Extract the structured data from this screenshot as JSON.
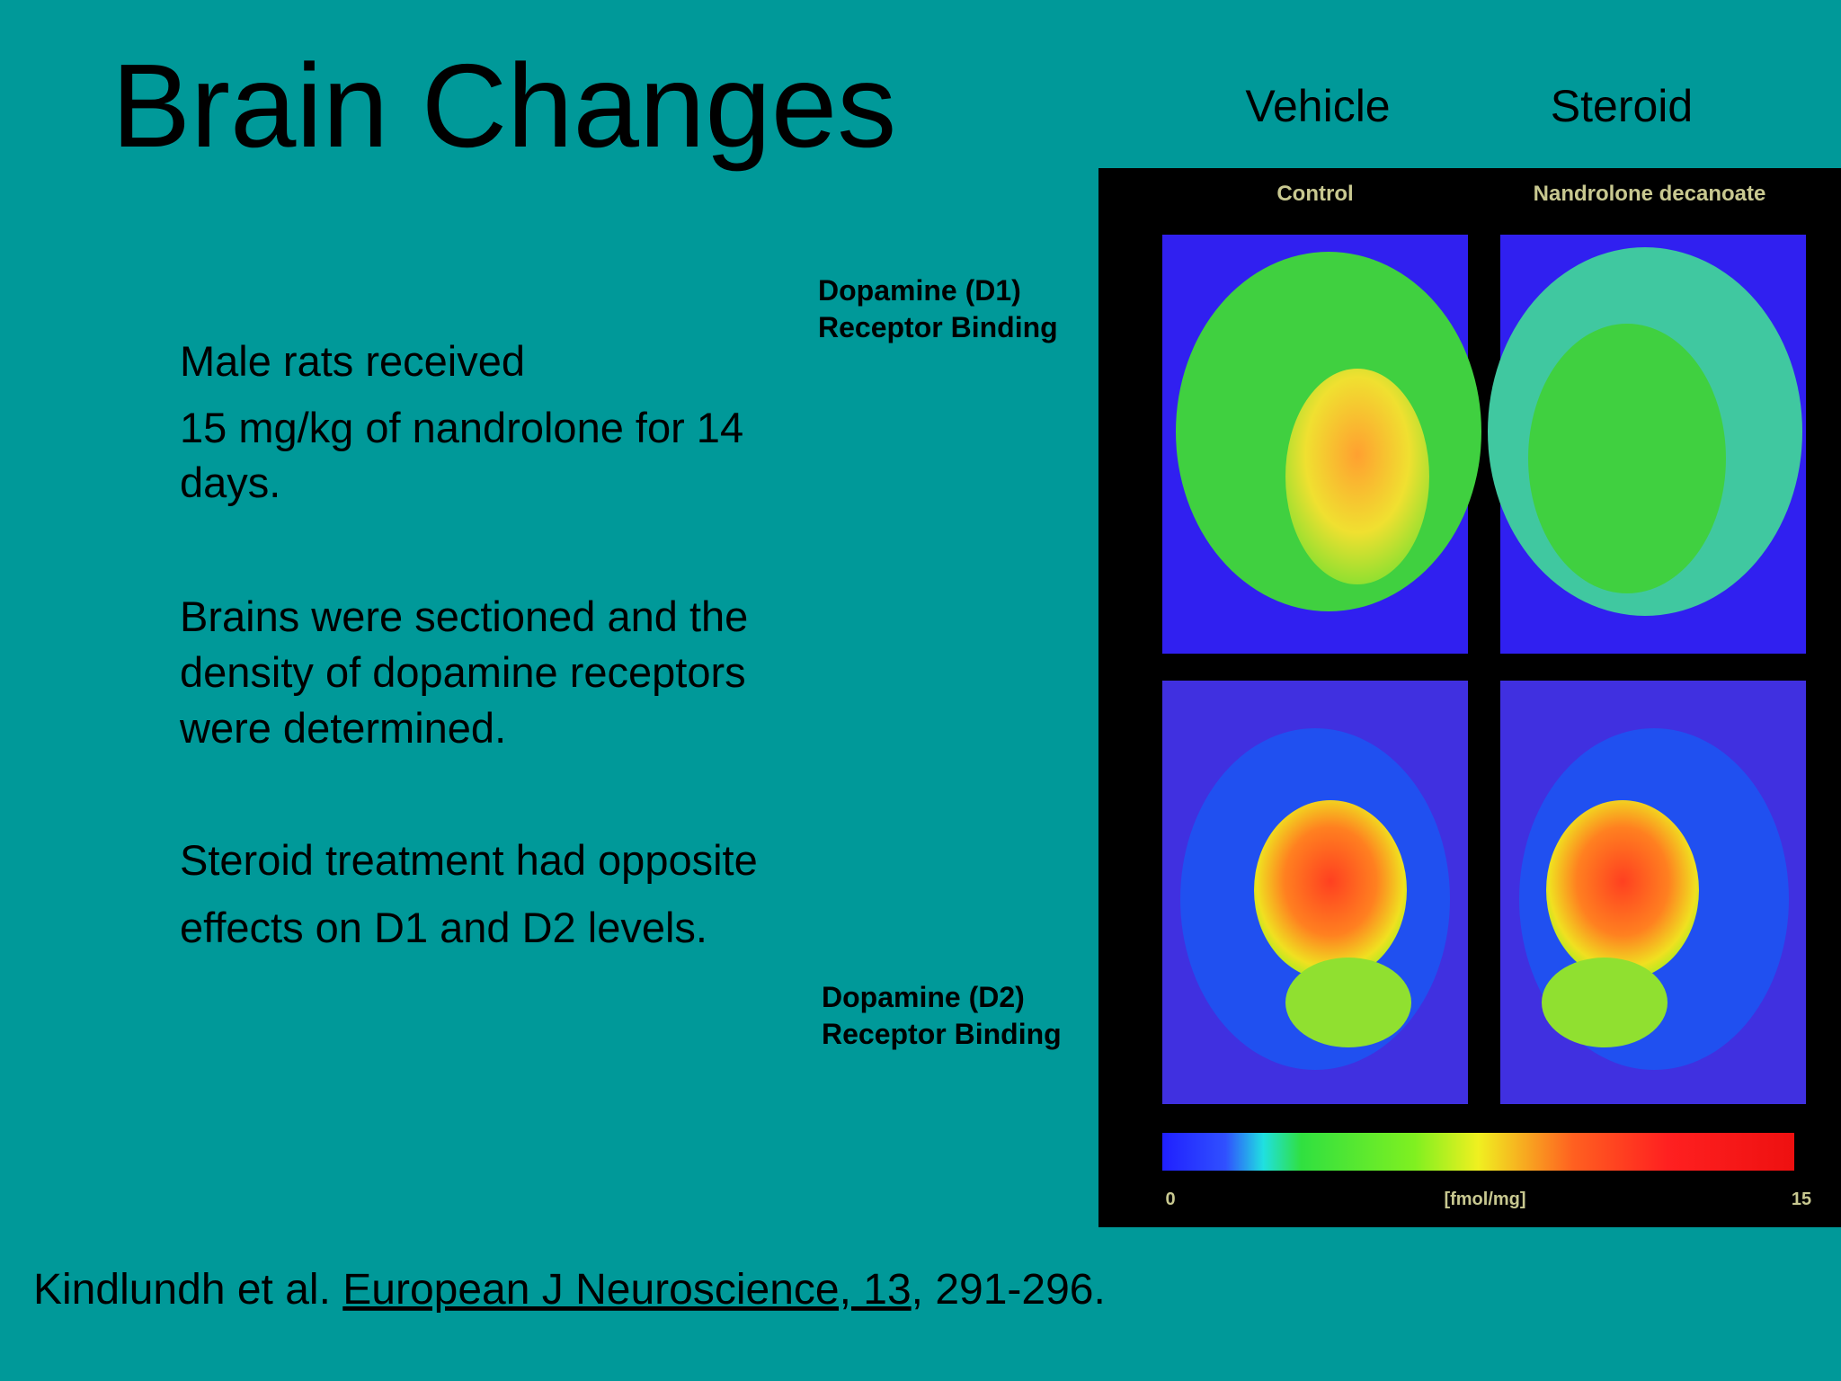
{
  "slide": {
    "title": "Brain Changes",
    "column_labels": [
      "Vehicle",
      "Steroid"
    ],
    "paragraphs": [
      [
        "Male rats received",
        "15 mg/kg of nandrolone for 14",
        "days."
      ],
      [
        "Brains were sectioned and the",
        "density of dopamine receptors",
        "were determined."
      ],
      [
        "Steroid treatment had opposite",
        "effects on D1 and D2 levels."
      ]
    ],
    "d1_label": [
      "Dopamine (D1)",
      "Receptor Binding"
    ],
    "d2_label": [
      "Dopamine (D2)",
      "Receptor Binding"
    ],
    "figure": {
      "panel_labels": [
        "Control",
        "Nandrolone decanoate"
      ],
      "colorbar_labels": [
        "0",
        "[fmol/mg]",
        "15"
      ]
    },
    "citation": {
      "authors": "Kindlundh et al. ",
      "journal": "European J Neuroscience, 13",
      "pages": ", 291-296."
    }
  }
}
